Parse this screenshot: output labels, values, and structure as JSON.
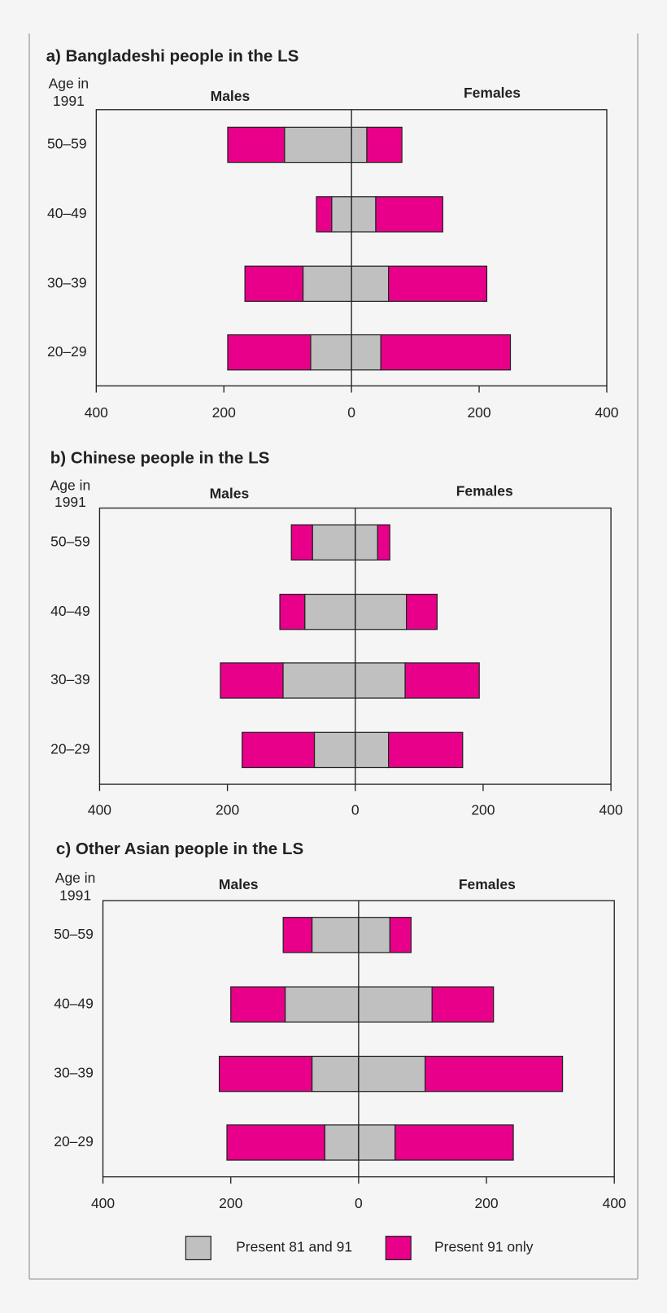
{
  "chart_data": [
    {
      "type": "pyramid",
      "title": "a)  Bangladeshi people in the LS",
      "y_label": [
        "Age in",
        "1991"
      ],
      "left_label": "Males",
      "right_label": "Females",
      "categories": [
        "50–59",
        "40–49",
        "30–39",
        "20–29"
      ],
      "xlim": [
        -400,
        400
      ],
      "xticks": [
        {
          "value": -400,
          "label": "400"
        },
        {
          "value": -200,
          "label": "200"
        },
        0,
        200,
        400
      ],
      "series": [
        {
          "name": "Present 81 and 91",
          "color": "#c0c0c0",
          "males": [
            -105,
            -31,
            -76,
            -64
          ],
          "females": [
            24,
            38,
            58,
            46
          ]
        },
        {
          "name": "Present 91 only",
          "color": "#e8008a",
          "males": [
            -89,
            -24,
            -91,
            -130
          ],
          "females": [
            55,
            105,
            154,
            203
          ]
        }
      ]
    },
    {
      "type": "pyramid",
      "title": "b)  Chinese people in the LS",
      "y_label": [
        "Age in",
        "1991"
      ],
      "left_label": "Males",
      "right_label": "Females",
      "categories": [
        "50–59",
        "40–49",
        "30–39",
        "20–29"
      ],
      "xlim": [
        -400,
        400
      ],
      "xticks": [
        {
          "value": -400,
          "label": "400"
        },
        {
          "value": -200,
          "label": "200"
        },
        0,
        200,
        400
      ],
      "series": [
        {
          "name": "Present 81 and 91",
          "color": "#c0c0c0",
          "males": [
            -67,
            -79,
            -113,
            -64
          ],
          "females": [
            35,
            80,
            78,
            52
          ]
        },
        {
          "name": "Present 91 only",
          "color": "#e8008a",
          "males": [
            -33,
            -39,
            -98,
            -113
          ],
          "females": [
            19,
            48,
            116,
            116
          ]
        }
      ]
    },
    {
      "type": "pyramid",
      "title": "c)  Other Asian people in the LS",
      "y_label": [
        "Age in",
        "1991"
      ],
      "left_label": "Males",
      "right_label": "Females",
      "categories": [
        "50–59",
        "40–49",
        "30–39",
        "20–29"
      ],
      "xlim": [
        -400,
        400
      ],
      "xticks": [
        {
          "value": -400,
          "label": "400"
        },
        {
          "value": -200,
          "label": "200"
        },
        0,
        200,
        400
      ],
      "series": [
        {
          "name": "Present 81 and 91",
          "color": "#c0c0c0",
          "males": [
            -73,
            -115,
            -73,
            -53
          ],
          "females": [
            49,
            115,
            104,
            57
          ]
        },
        {
          "name": "Present 91 only",
          "color": "#e8008a",
          "males": [
            -45,
            -85,
            -145,
            -153
          ],
          "females": [
            33,
            96,
            215,
            185
          ]
        }
      ]
    }
  ]
}
